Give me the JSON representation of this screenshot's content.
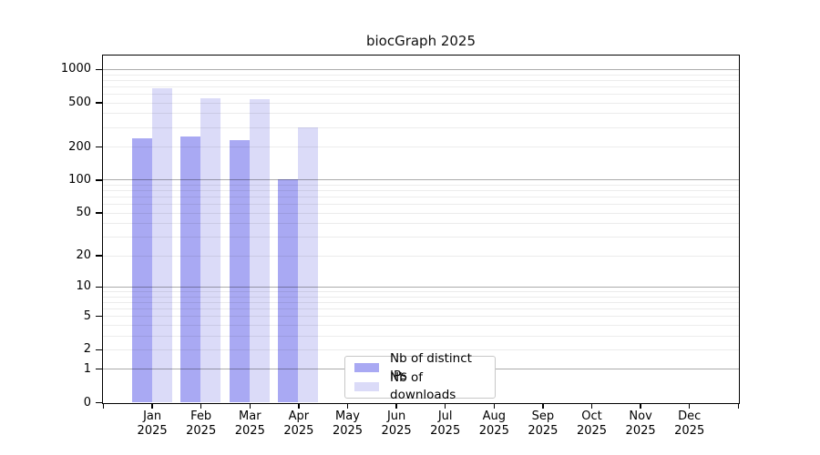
{
  "title": "biocGraph 2025",
  "legend": {
    "items": [
      {
        "label": "Nb of distinct IPs",
        "color": "#a9a9f3"
      },
      {
        "label": "Nb of downloads",
        "color": "#dbdbf8"
      }
    ]
  },
  "chart_data": {
    "type": "bar",
    "title": "biocGraph 2025",
    "categories": [
      "Jan",
      "Feb",
      "Mar",
      "Apr",
      "May",
      "Jun",
      "Jul",
      "Aug",
      "Sep",
      "Oct",
      "Nov",
      "Dec"
    ],
    "year_label": "2025",
    "series": [
      {
        "name": "Nb of distinct IPs",
        "color": "#a9a9f3",
        "values": [
          237,
          247,
          230,
          101,
          null,
          null,
          null,
          null,
          null,
          null,
          null,
          null
        ]
      },
      {
        "name": "Nb of downloads",
        "color": "#dbdbf8",
        "values": [
          668,
          545,
          540,
          296,
          null,
          null,
          null,
          null,
          null,
          null,
          null,
          null
        ]
      }
    ],
    "y_axis": {
      "scale": "log10(1+x)",
      "tick_values": [
        0,
        1,
        2,
        5,
        10,
        20,
        50,
        100,
        200,
        500,
        1000
      ],
      "major_grid_values": [
        1,
        10,
        100,
        1000
      ],
      "minor_grid_values": [
        2,
        3,
        4,
        5,
        6,
        7,
        8,
        9,
        20,
        30,
        40,
        50,
        60,
        70,
        80,
        90,
        200,
        300,
        400,
        500,
        600,
        700,
        800,
        900
      ],
      "ylim": [
        0,
        1380
      ]
    },
    "xlabel": "",
    "ylabel": "",
    "grid": true,
    "legend_position": "inside-bottom-center"
  },
  "colors": {
    "bar_ips": "#a9a9f3",
    "bar_downloads": "#dbdbf8",
    "axis": "#000000",
    "major_grid": "#b0b0b0",
    "minor_grid": "#ececec",
    "legend_border": "#c8c8c8",
    "background": "#ffffff"
  }
}
